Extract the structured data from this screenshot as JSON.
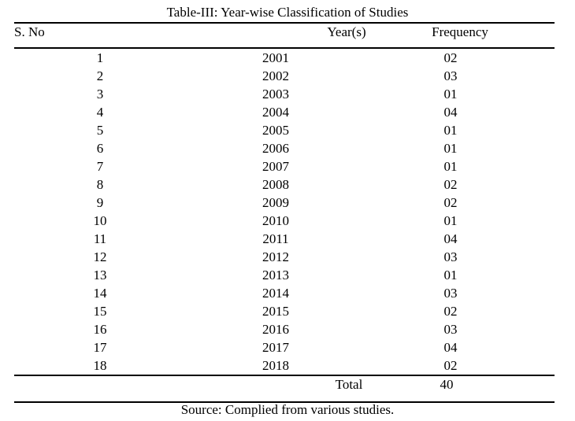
{
  "page": {
    "title": "Table-III: Year-wise Classification of Studies",
    "source_note": "Source: Complied from various studies."
  },
  "table": {
    "columns": {
      "sno": "S. No",
      "year": "Year(s)",
      "frequency": "Frequency"
    },
    "rows": [
      {
        "sno": "1",
        "year": "2001",
        "freq": "02"
      },
      {
        "sno": "2",
        "year": "2002",
        "freq": "03"
      },
      {
        "sno": "3",
        "year": "2003",
        "freq": "01"
      },
      {
        "sno": "4",
        "year": "2004",
        "freq": "04"
      },
      {
        "sno": "5",
        "year": "2005",
        "freq": "01"
      },
      {
        "sno": "6",
        "year": "2006",
        "freq": "01"
      },
      {
        "sno": "7",
        "year": "2007",
        "freq": "01"
      },
      {
        "sno": "8",
        "year": "2008",
        "freq": "02"
      },
      {
        "sno": "9",
        "year": "2009",
        "freq": "02"
      },
      {
        "sno": "10",
        "year": "2010",
        "freq": "01"
      },
      {
        "sno": "11",
        "year": "2011",
        "freq": "04"
      },
      {
        "sno": "12",
        "year": "2012",
        "freq": "03"
      },
      {
        "sno": "13",
        "year": "2013",
        "freq": "01"
      },
      {
        "sno": "14",
        "year": "2014",
        "freq": "03"
      },
      {
        "sno": "15",
        "year": "2015",
        "freq": "02"
      },
      {
        "sno": "16",
        "year": "2016",
        "freq": "03"
      },
      {
        "sno": "17",
        "year": "2017",
        "freq": "04"
      },
      {
        "sno": "18",
        "year": "2018",
        "freq": "02"
      }
    ],
    "total": {
      "label": "Total",
      "value": "40"
    }
  },
  "colors": {
    "background": "#ffffff",
    "text": "#000000",
    "rule": "#000000"
  }
}
